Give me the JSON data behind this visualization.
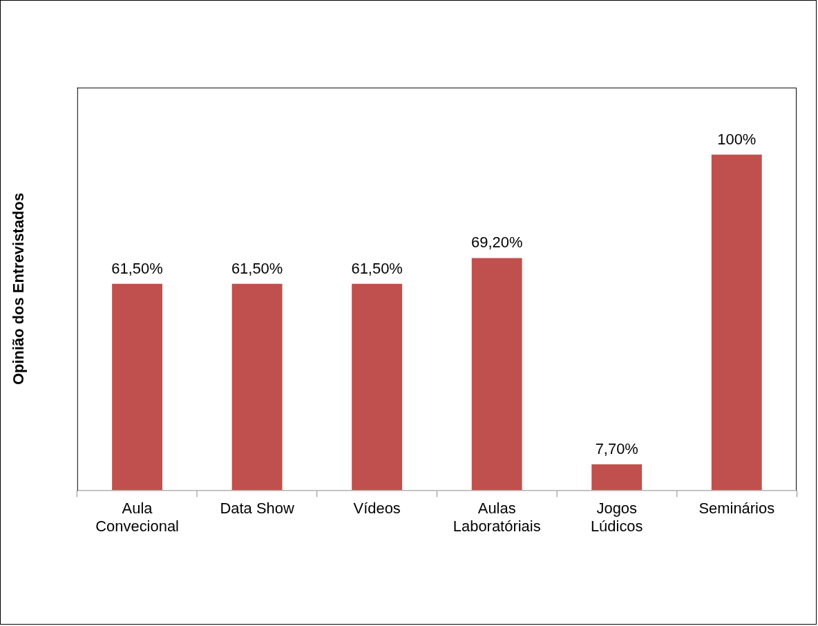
{
  "chart_data": {
    "type": "bar",
    "ylabel": "Opinião dos Entrevistados",
    "categories": [
      "Aula Convecional",
      "Data Show",
      "Vídeos",
      "Aulas Laboratóriais",
      "Jogos Lúdicos",
      "Seminários"
    ],
    "values": [
      61.5,
      61.5,
      61.5,
      69.2,
      7.7,
      100
    ],
    "value_labels": [
      "61,50%",
      "61,50%",
      "61,50%",
      "69,20%",
      "7,70%",
      "100%"
    ],
    "color": "#c0504d",
    "ylim": [
      0,
      120
    ],
    "tick_labels": "x",
    "grid": false,
    "legend": false
  }
}
